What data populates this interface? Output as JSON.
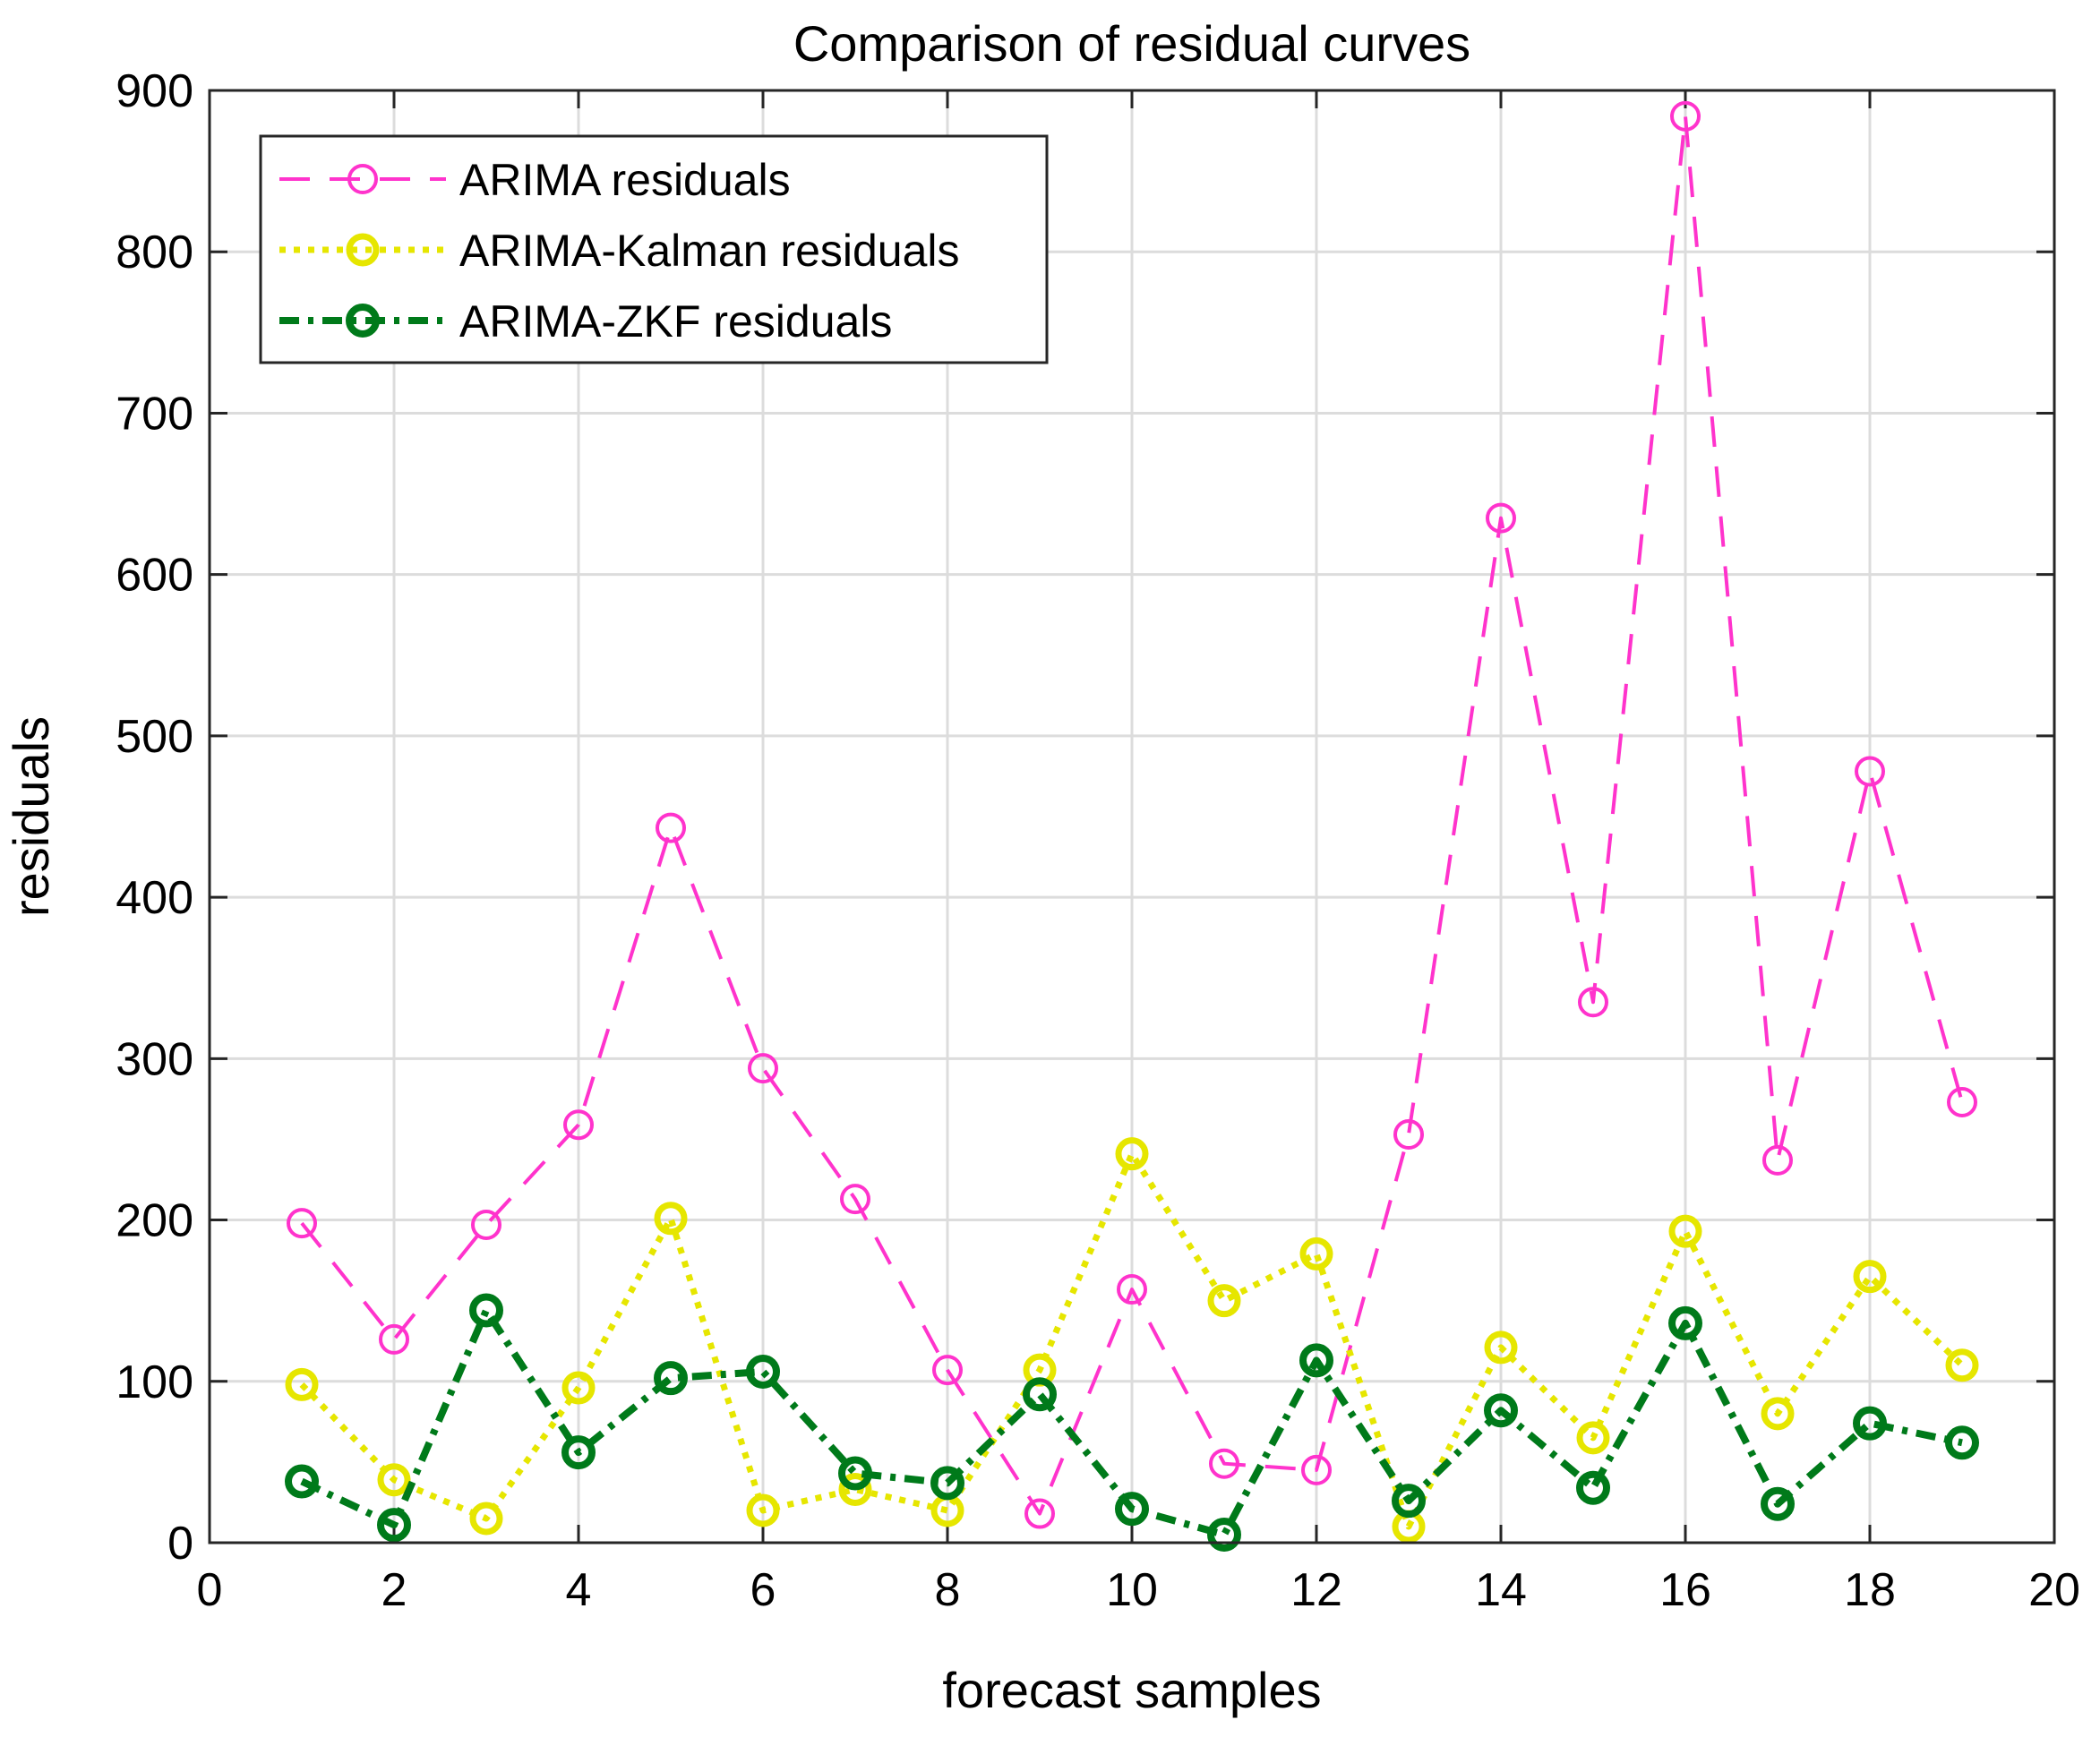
{
  "chart_data": {
    "type": "line",
    "title": "Comparison of residual curves",
    "xlabel": "forecast samples",
    "ylabel": "residuals",
    "xlim": [
      0,
      20
    ],
    "ylim": [
      0,
      900
    ],
    "xticks": [
      0,
      2,
      4,
      6,
      8,
      10,
      12,
      14,
      16,
      18,
      20
    ],
    "yticks": [
      0,
      100,
      200,
      300,
      400,
      500,
      600,
      700,
      800,
      900
    ],
    "grid": true,
    "legend_position": "top-left",
    "x": [
      1,
      2,
      3,
      4,
      5,
      6,
      7,
      8,
      9,
      10,
      11,
      12,
      13,
      14,
      15,
      16,
      17,
      18,
      19
    ],
    "series": [
      {
        "name": "ARIMA residuals",
        "color": "#ff33cc",
        "line_style": "dashed",
        "marker": "circle",
        "values": [
          198,
          126,
          197,
          259,
          443,
          294,
          213,
          107,
          18,
          157,
          49,
          45,
          253,
          635,
          335,
          884,
          237,
          478,
          273
        ]
      },
      {
        "name": "ARIMA-Kalman residuals",
        "color": "#e6e600",
        "line_style": "dotted",
        "marker": "circle",
        "values": [
          98,
          39,
          15,
          96,
          201,
          20,
          33,
          20,
          107,
          241,
          150,
          179,
          10,
          121,
          65,
          193,
          80,
          165,
          110
        ]
      },
      {
        "name": "ARIMA-ZKF residuals",
        "color": "#007a1a",
        "line_style": "dash-dot",
        "marker": "circle",
        "values": [
          38,
          11,
          144,
          56,
          102,
          106,
          43,
          37,
          92,
          21,
          5,
          113,
          26,
          82,
          34,
          136,
          24,
          74,
          62
        ]
      }
    ]
  }
}
